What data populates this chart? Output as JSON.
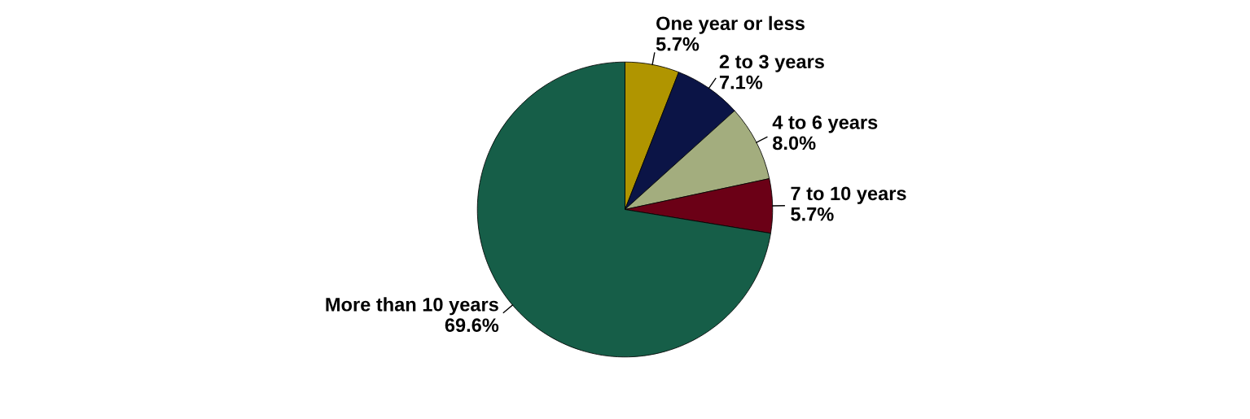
{
  "chart_data": {
    "type": "pie",
    "categories": [
      "One year or less",
      "2 to 3 years",
      "4 to 6 years",
      "7 to 10 years",
      "More than 10 years"
    ],
    "values": [
      5.7,
      7.1,
      8.0,
      5.7,
      69.6
    ],
    "value_labels": [
      "5.7%",
      "7.1%",
      "8.0%",
      "5.7%",
      "69.6%"
    ],
    "colors": [
      "#b09500",
      "#0b1446",
      "#a3ad7e",
      "#6b0016",
      "#165e48"
    ],
    "legend": false
  }
}
